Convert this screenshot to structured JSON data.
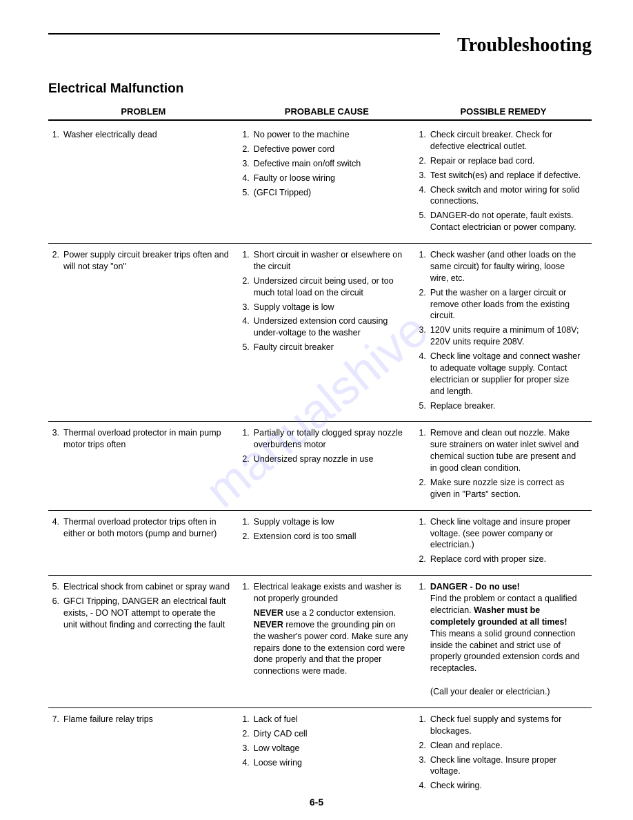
{
  "page": {
    "heading": "Troubleshooting",
    "section_title": "Electrical Malfunction",
    "page_number": "6-5",
    "watermark": "manualshive"
  },
  "columns": {
    "problem": "PROBLEM",
    "cause": "PROBABLE CAUSE",
    "remedy": "POSSIBLE REMEDY"
  },
  "blocks": [
    {
      "problems": [
        {
          "n": "1.",
          "t": "Washer electrically dead"
        }
      ],
      "causes": [
        {
          "n": "1.",
          "t": "No power to the machine"
        },
        {
          "n": "2.",
          "t": "Defective power cord"
        },
        {
          "n": "3.",
          "t": "Defective main on/off switch"
        },
        {
          "n": "4.",
          "t": "Faulty or loose wiring"
        },
        {
          "n": "5.",
          "t": "(GFCI Tripped)"
        }
      ],
      "remedies": [
        {
          "n": "1.",
          "t": "Check circuit breaker. Check for defective electrical outlet."
        },
        {
          "n": "2.",
          "t": "Repair or replace bad cord."
        },
        {
          "n": "3.",
          "t": "Test switch(es) and replace if defective."
        },
        {
          "n": "4.",
          "t": "Check switch and motor wiring for solid connections."
        },
        {
          "n": "5.",
          "t": "DANGER-do not operate, fault exists. Contact electrician or power company."
        }
      ]
    },
    {
      "problems": [
        {
          "n": "2.",
          "t": "Power supply circuit breaker trips often and will not stay \"on\""
        }
      ],
      "causes": [
        {
          "n": "1.",
          "t": "Short circuit in washer or elsewhere on the circuit"
        },
        {
          "n": "2.",
          "t": "Undersized circuit being used, or too much total load on the circuit"
        },
        {
          "n": "3.",
          "t": "Supply voltage is low"
        },
        {
          "n": "4.",
          "t": "Undersized extension cord causing under-voltage to the washer"
        },
        {
          "n": "5.",
          "t": "Faulty circuit breaker"
        }
      ],
      "remedies": [
        {
          "n": "1.",
          "t": "Check washer (and other loads on the same circuit) for faulty wiring, loose wire, etc."
        },
        {
          "n": "2.",
          "t": "Put the washer on a larger circuit or remove other loads from the existing circuit."
        },
        {
          "n": "3.",
          "t": "120V units require a minimum of 108V; 220V units require 208V."
        },
        {
          "n": "4.",
          "t": "Check line voltage and connect washer to adequate voltage supply. Contact electrician or supplier for proper size and length."
        },
        {
          "n": "5.",
          "t": "Replace breaker."
        }
      ]
    },
    {
      "problems": [
        {
          "n": "3.",
          "t": "Thermal overload protector in main pump motor trips often"
        }
      ],
      "causes": [
        {
          "n": "1.",
          "t": "Partially or totally clogged spray nozzle overburdens motor"
        },
        {
          "n": "2.",
          "t": "Undersized spray nozzle in use"
        }
      ],
      "remedies": [
        {
          "n": "1.",
          "t": "Remove and clean out nozzle. Make sure strainers on water inlet swivel and chemical suction tube are present and in good clean condition."
        },
        {
          "n": "2.",
          "t": "Make sure nozzle size is correct as given in \"Parts\" section."
        }
      ]
    },
    {
      "problems": [
        {
          "n": "4.",
          "t": "Thermal overload protector trips often in either or both motors (pump and burner)"
        }
      ],
      "causes": [
        {
          "n": "1.",
          "t": "Supply voltage is low"
        },
        {
          "n": "2.",
          "t": "Extension cord is too small"
        }
      ],
      "remedies": [
        {
          "n": "1.",
          "t": "Check line voltage and insure proper voltage. (see power company or electrician.)"
        },
        {
          "n": "2.",
          "t": "Replace cord with proper size."
        }
      ]
    },
    {
      "problems": [
        {
          "n": "5.",
          "t": "Electrical shock from cabinet or spray wand"
        },
        {
          "n": "6.",
          "t": "GFCI Tripping, DANGER an electrical fault exists, - DO NOT attempt to operate the unit without finding and correcting the fault"
        }
      ],
      "causes": [
        {
          "n": "1.",
          "t": "Electrical leakage exists and washer is not properly grounded"
        },
        {
          "n": "",
          "html": "<b>NEVER</b> use a 2 conductor extension. <b>NEVER</b> remove the grounding pin on the washer's power cord. Make sure any repairs done to the extension cord were done properly and that the proper connections were made."
        }
      ],
      "remedies": [
        {
          "n": "1.",
          "html": "<b>DANGER - Do no use!</b><br>Find the problem or contact a qualified electrician. <b>Washer must be completely grounded at all times!</b> This means a solid ground connection inside the cabinet and strict use of properly grounded extension cords and receptacles.<br><br>(Call your dealer or electrician.)"
        }
      ]
    },
    {
      "problems": [
        {
          "n": "7.",
          "t": "Flame failure relay trips"
        }
      ],
      "causes": [
        {
          "n": "1.",
          "t": "Lack of fuel"
        },
        {
          "n": "2.",
          "t": "Dirty CAD cell"
        },
        {
          "n": "3.",
          "t": "Low voltage"
        },
        {
          "n": "4.",
          "t": "Loose wiring"
        }
      ],
      "remedies": [
        {
          "n": "1.",
          "t": "Check fuel supply and systems for blockages."
        },
        {
          "n": "2.",
          "t": "Clean and replace."
        },
        {
          "n": "3.",
          "t": "Check line voltage. Insure proper voltage."
        },
        {
          "n": "4.",
          "t": "Check wiring."
        }
      ]
    }
  ]
}
